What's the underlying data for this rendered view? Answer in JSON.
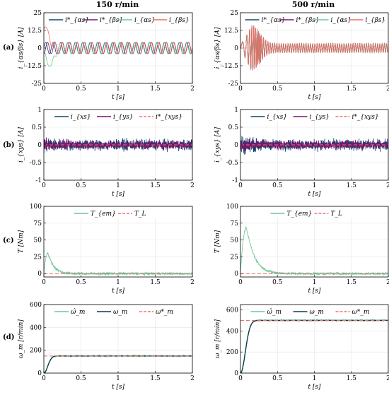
{
  "column_titles": [
    "150 r/min",
    "500 r/min"
  ],
  "row_labels": [
    "(a)",
    "(b)",
    "(c)",
    "(d)"
  ],
  "colors": {
    "dark_blue": "#10466b",
    "purple": "#7a1470",
    "green": "#6dc897",
    "salmon": "#ef6f60",
    "dashed_red": "#ef7070",
    "dark_teal": "#0b3d4a"
  },
  "chart_data": [
    {
      "id": "a-150",
      "type": "line",
      "xlabel": "t [s]",
      "ylabel": "i_{αs/βs} [A]",
      "xlim": [
        0,
        2
      ],
      "ylim": [
        -25,
        25
      ],
      "xticks": [
        0,
        0.5,
        1,
        1.5,
        2
      ],
      "yticks": [
        -25,
        -12.5,
        0,
        12.5,
        25
      ],
      "legend_position": "top",
      "grid": true,
      "series": [
        {
          "name": "i*_{αs}",
          "color": "#10466b",
          "style": "solid",
          "model": "sine",
          "amplitude": 4,
          "frequency_hz": 10,
          "phase": 0
        },
        {
          "name": "i*_{βs}",
          "color": "#7a1470",
          "style": "solid",
          "model": "sine",
          "amplitude": 4,
          "frequency_hz": 10,
          "phase": -1.5708
        },
        {
          "name": "i_{αs}",
          "color": "#6dc897",
          "style": "solid",
          "model": "sine",
          "amplitude": 4,
          "frequency_hz": 10,
          "phase": 0.3,
          "transient_peak": -13,
          "transient_time": 0.08
        },
        {
          "name": "i_{βs}",
          "color": "#ef6f60",
          "style": "solid",
          "model": "sine",
          "amplitude": 4,
          "frequency_hz": 10,
          "phase": -1.3,
          "transient_peak": 15,
          "transient_time": 0.02
        }
      ]
    },
    {
      "id": "a-500",
      "type": "line",
      "xlabel": "t [s]",
      "ylabel": "i_{αs/βs} [A]",
      "xlim": [
        0,
        2
      ],
      "ylim": [
        -25,
        25
      ],
      "xticks": [
        0,
        0.5,
        1,
        1.5,
        2
      ],
      "yticks": [
        -25,
        -12.5,
        0,
        12.5,
        25
      ],
      "legend_position": "top",
      "grid": true,
      "series": [
        {
          "name": "i*_{αs}",
          "color": "#10466b",
          "style": "solid",
          "model": "chirp",
          "amplitude": 3,
          "peak_amplitude": 16,
          "peak_time": 0.15,
          "frequency_hz": 33
        },
        {
          "name": "i*_{βs}",
          "color": "#7a1470",
          "style": "solid",
          "model": "chirp",
          "amplitude": 3,
          "peak_amplitude": 16,
          "peak_time": 0.15,
          "frequency_hz": 33
        },
        {
          "name": "i_{αs}",
          "color": "#6dc897",
          "style": "solid",
          "model": "chirp",
          "amplitude": 3,
          "peak_amplitude": 16,
          "peak_time": 0.15,
          "frequency_hz": 33
        },
        {
          "name": "i_{βs}",
          "color": "#ef6f60",
          "style": "solid",
          "model": "chirp",
          "amplitude": 3,
          "peak_amplitude": 16,
          "peak_time": 0.15,
          "frequency_hz": 33
        }
      ]
    },
    {
      "id": "b-150",
      "type": "line",
      "xlabel": "t [s]",
      "ylabel": "i_{xys} [A]",
      "xlim": [
        0,
        2
      ],
      "ylim": [
        -1,
        1
      ],
      "xticks": [
        0,
        0.5,
        1,
        1.5,
        2
      ],
      "yticks": [
        -1,
        -0.5,
        0,
        0.5,
        1
      ],
      "legend_position": "top",
      "grid": true,
      "series": [
        {
          "name": "i_{xs}",
          "color": "#10466b",
          "style": "solid",
          "model": "noise",
          "amplitude": 0.22,
          "start_amplitude": 0.4
        },
        {
          "name": "i_{ys}",
          "color": "#7a1470",
          "style": "solid",
          "model": "noise",
          "amplitude": 0.18,
          "start_amplitude": 0.3
        },
        {
          "name": "i*_{xys}",
          "color": "#ef7070",
          "style": "dashed",
          "model": "constant",
          "value": 0
        }
      ]
    },
    {
      "id": "b-500",
      "type": "line",
      "xlabel": "t [s]",
      "ylabel": "i_{xys} [A]",
      "xlim": [
        0,
        2
      ],
      "ylim": [
        -1,
        1
      ],
      "xticks": [
        0,
        0.5,
        1,
        1.5,
        2
      ],
      "yticks": [
        -1,
        -0.5,
        0,
        0.5,
        1
      ],
      "legend_position": "top",
      "grid": true,
      "series": [
        {
          "name": "i_{xs}",
          "color": "#10466b",
          "style": "solid",
          "model": "noise",
          "amplitude": 0.22,
          "start_amplitude": 0.45
        },
        {
          "name": "i_{ys}",
          "color": "#7a1470",
          "style": "solid",
          "model": "noise",
          "amplitude": 0.18,
          "start_amplitude": 0.35
        },
        {
          "name": "i*_{xys}",
          "color": "#ef7070",
          "style": "dashed",
          "model": "constant",
          "value": 0
        }
      ]
    },
    {
      "id": "c-150",
      "type": "line",
      "xlabel": "t [s]",
      "ylabel": "T [Nm]",
      "xlim": [
        0,
        2
      ],
      "ylim": [
        -5,
        100
      ],
      "xticks": [
        0,
        0.5,
        1,
        1.5,
        2
      ],
      "yticks": [
        0,
        25,
        50,
        75,
        100
      ],
      "legend_position": "top",
      "grid": true,
      "series": [
        {
          "name": "T_{em}",
          "color": "#6dc897",
          "style": "solid",
          "model": "pulse",
          "peak": 38,
          "peak_time": 0.08,
          "decay": 0.07,
          "noise": 3
        },
        {
          "name": "T_L",
          "color": "#ef7070",
          "style": "dashed",
          "model": "constant",
          "value": 0
        }
      ]
    },
    {
      "id": "c-500",
      "type": "line",
      "xlabel": "t [s]",
      "ylabel": "T [Nm]",
      "xlim": [
        0,
        2
      ],
      "ylim": [
        -5,
        100
      ],
      "xticks": [
        0,
        0.5,
        1,
        1.5,
        2
      ],
      "yticks": [
        0,
        25,
        50,
        75,
        100
      ],
      "legend_position": "top",
      "grid": true,
      "series": [
        {
          "name": "T_{em}",
          "color": "#6dc897",
          "style": "solid",
          "model": "pulse",
          "peak": 84,
          "peak_time": 0.12,
          "decay": 0.1,
          "noise": 3
        },
        {
          "name": "T_L",
          "color": "#ef7070",
          "style": "dashed",
          "model": "constant",
          "value": 0
        }
      ]
    },
    {
      "id": "d-150",
      "type": "line",
      "xlabel": "t [s]",
      "ylabel": "ω_m [r/min]",
      "xlim": [
        0,
        2
      ],
      "ylim": [
        0,
        600
      ],
      "xticks": [
        0,
        0.5,
        1,
        1.5,
        2
      ],
      "yticks": [
        0,
        200,
        400,
        600
      ],
      "legend_position": "top",
      "grid": true,
      "series": [
        {
          "name": "ω̂_m",
          "color": "#6dc897",
          "style": "solid",
          "model": "rise",
          "final": 150,
          "tau": 0.08,
          "noise": 10
        },
        {
          "name": "ω_m",
          "color": "#0b3d4a",
          "style": "solid",
          "model": "rise",
          "final": 150,
          "tau": 0.08,
          "noise": 0
        },
        {
          "name": "ω*_m",
          "color": "#ef7070",
          "style": "dashed",
          "model": "constant",
          "value": 150
        }
      ]
    },
    {
      "id": "d-500",
      "type": "line",
      "xlabel": "t [s]",
      "ylabel": "ω_m [r/min]",
      "xlim": [
        0,
        2
      ],
      "ylim": [
        0,
        650
      ],
      "xticks": [
        0,
        0.5,
        1,
        1.5,
        2
      ],
      "yticks": [
        0,
        200,
        400,
        600
      ],
      "legend_position": "top",
      "grid": true,
      "series": [
        {
          "name": "ω̂_m",
          "color": "#6dc897",
          "style": "solid",
          "model": "rise",
          "final": 500,
          "tau": 0.1,
          "noise": 12
        },
        {
          "name": "ω_m",
          "color": "#0b3d4a",
          "style": "solid",
          "model": "rise",
          "final": 500,
          "tau": 0.1,
          "noise": 0
        },
        {
          "name": "ω*_m",
          "color": "#ef7070",
          "style": "dashed",
          "model": "constant",
          "value": 500
        }
      ]
    }
  ]
}
